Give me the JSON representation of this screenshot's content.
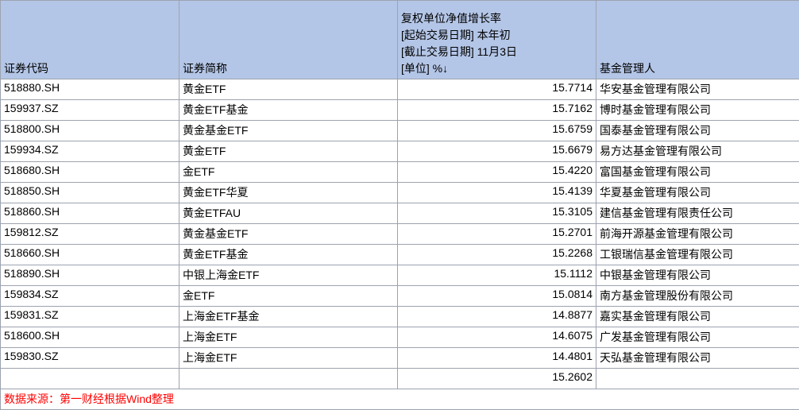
{
  "columns": {
    "code": "证券代码",
    "name": "证券简称",
    "growth": "复权单位净值增长率\n[起始交易日期] 本年初\n[截止交易日期] 11月3日\n[单位] %↓",
    "manager": "基金管理人"
  },
  "rows": [
    {
      "code": "518880.SH",
      "name": "黄金ETF",
      "growth": "15.7714",
      "manager": "华安基金管理有限公司"
    },
    {
      "code": "159937.SZ",
      "name": "黄金ETF基金",
      "growth": "15.7162",
      "manager": "博时基金管理有限公司"
    },
    {
      "code": "518800.SH",
      "name": "黄金基金ETF",
      "growth": "15.6759",
      "manager": "国泰基金管理有限公司"
    },
    {
      "code": "159934.SZ",
      "name": "黄金ETF",
      "growth": "15.6679",
      "manager": "易方达基金管理有限公司"
    },
    {
      "code": "518680.SH",
      "name": "金ETF",
      "growth": "15.4220",
      "manager": "富国基金管理有限公司"
    },
    {
      "code": "518850.SH",
      "name": "黄金ETF华夏",
      "growth": "15.4139",
      "manager": "华夏基金管理有限公司"
    },
    {
      "code": "518860.SH",
      "name": "黄金ETFAU",
      "growth": "15.3105",
      "manager": "建信基金管理有限责任公司"
    },
    {
      "code": "159812.SZ",
      "name": "黄金基金ETF",
      "growth": "15.2701",
      "manager": "前海开源基金管理有限公司"
    },
    {
      "code": "518660.SH",
      "name": "黄金ETF基金",
      "growth": "15.2268",
      "manager": "工银瑞信基金管理有限公司"
    },
    {
      "code": "518890.SH",
      "name": "中银上海金ETF",
      "growth": "15.1112",
      "manager": "中银基金管理有限公司"
    },
    {
      "code": "159834.SZ",
      "name": "金ETF",
      "growth": "15.0814",
      "manager": "南方基金管理股份有限公司"
    },
    {
      "code": "159831.SZ",
      "name": "上海金ETF基金",
      "growth": "14.8877",
      "manager": "嘉实基金管理有限公司"
    },
    {
      "code": "518600.SH",
      "name": "上海金ETF",
      "growth": "14.6075",
      "manager": "广发基金管理有限公司"
    },
    {
      "code": "159830.SZ",
      "name": "上海金ETF",
      "growth": "14.4801",
      "manager": "天弘基金管理有限公司"
    }
  ],
  "summary": {
    "growth": "15.2602"
  },
  "source": "数据来源：第一财经根据Wind整理",
  "style": {
    "header_bg": "#b4c6e7",
    "border_color": "#9ca3af",
    "source_color": "#ff0000",
    "font_size": 14
  }
}
